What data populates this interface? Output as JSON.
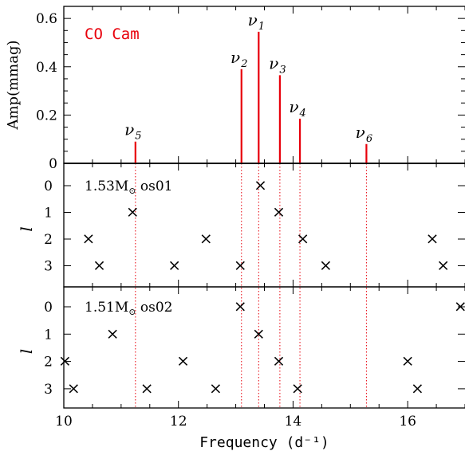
{
  "chart_data": [
    {
      "type": "bar",
      "annotation": "CO Cam",
      "ylabel": "Amp(mmag)",
      "xlim": [
        10,
        17
      ],
      "ylim": [
        0,
        0.65
      ],
      "y_ticks": [
        0,
        0.2,
        0.4,
        0.6
      ],
      "y_tick_labels": [
        "0",
        "0.2",
        "0.4",
        "0.6"
      ],
      "color": "#e8000b",
      "peaks": [
        {
          "label_base": "ν",
          "label_sub": "1",
          "x": 13.4,
          "amp": 0.545
        },
        {
          "label_base": "ν",
          "label_sub": "2",
          "x": 13.1,
          "amp": 0.39
        },
        {
          "label_base": "ν",
          "label_sub": "3",
          "x": 13.77,
          "amp": 0.365
        },
        {
          "label_base": "ν",
          "label_sub": "4",
          "x": 14.12,
          "amp": 0.185
        },
        {
          "label_base": "ν",
          "label_sub": "5",
          "x": 11.25,
          "amp": 0.09
        },
        {
          "label_base": "ν",
          "label_sub": "6",
          "x": 15.28,
          "amp": 0.08
        }
      ]
    },
    {
      "type": "scatter",
      "annotation_main": "1.53M",
      "annotation_sub": "⊙",
      "annotation_tail": " os01",
      "ylabel": "l",
      "y_tick_labels": [
        "0",
        "1",
        "2",
        "3"
      ],
      "marker": "×",
      "points": [
        {
          "x": 13.43,
          "l": 0
        },
        {
          "x": 11.2,
          "l": 1
        },
        {
          "x": 13.75,
          "l": 1
        },
        {
          "x": 10.43,
          "l": 2
        },
        {
          "x": 12.48,
          "l": 2
        },
        {
          "x": 14.17,
          "l": 2
        },
        {
          "x": 16.43,
          "l": 2
        },
        {
          "x": 10.62,
          "l": 3
        },
        {
          "x": 11.93,
          "l": 3
        },
        {
          "x": 13.08,
          "l": 3
        },
        {
          "x": 14.57,
          "l": 3
        },
        {
          "x": 16.62,
          "l": 3
        }
      ]
    },
    {
      "type": "scatter",
      "annotation_main": "1.51M",
      "annotation_sub": "⊙",
      "annotation_tail": " os02",
      "ylabel": "l",
      "y_tick_labels": [
        "0",
        "1",
        "2",
        "3"
      ],
      "marker": "×",
      "xlabel": "Frequency (d⁻¹)",
      "x_ticks": [
        10,
        12,
        14,
        16
      ],
      "x_tick_labels": [
        "10",
        "12",
        "14",
        "16"
      ],
      "points": [
        {
          "x": 13.08,
          "l": 0
        },
        {
          "x": 16.92,
          "l": 0
        },
        {
          "x": 10.85,
          "l": 1
        },
        {
          "x": 13.4,
          "l": 1
        },
        {
          "x": 10.02,
          "l": 2
        },
        {
          "x": 12.08,
          "l": 2
        },
        {
          "x": 13.75,
          "l": 2
        },
        {
          "x": 16.0,
          "l": 2
        },
        {
          "x": 10.17,
          "l": 3
        },
        {
          "x": 11.45,
          "l": 3
        },
        {
          "x": 12.65,
          "l": 3
        },
        {
          "x": 14.08,
          "l": 3
        },
        {
          "x": 16.17,
          "l": 3
        }
      ]
    }
  ]
}
